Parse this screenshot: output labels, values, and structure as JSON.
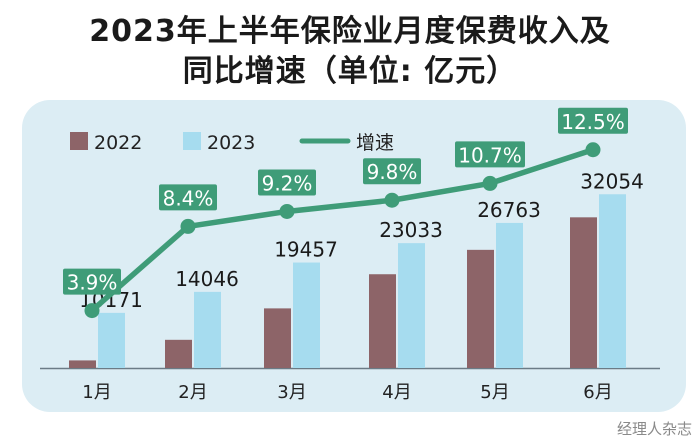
{
  "title": {
    "line1": "2023年上半年保险业月度保费收入及",
    "line2": "同比增速（单位: 亿元）"
  },
  "watermark": "经理人杂志",
  "colors": {
    "c2022": "#8d6468",
    "c2023": "#a6dcef",
    "growth": "#3f9c78",
    "panel": "#dcedf4"
  },
  "chart_data": {
    "type": "bar",
    "categories": [
      "1月",
      "2月",
      "3月",
      "4月",
      "5月",
      "6月"
    ],
    "series": [
      {
        "name": "2022",
        "values": [
          1400,
          5200,
          11000,
          17300,
          21800,
          27800
        ]
      },
      {
        "name": "2023",
        "values": [
          10171,
          14046,
          19457,
          23033,
          26763,
          32054
        ],
        "labels": [
          "10171",
          "14046",
          "19457",
          "23033",
          "26763",
          "32054"
        ]
      },
      {
        "name": "增速",
        "kind": "line",
        "values": [
          3.9,
          8.4,
          9.2,
          9.8,
          10.7,
          12.5
        ],
        "labels": [
          "3.9%",
          "8.4%",
          "9.2%",
          "9.8%",
          "10.7%",
          "12.5%"
        ]
      }
    ],
    "title": "2023年上半年保险业月度保费收入及同比增速（单位: 亿元）",
    "legend_position": "top-left",
    "grid": false
  }
}
